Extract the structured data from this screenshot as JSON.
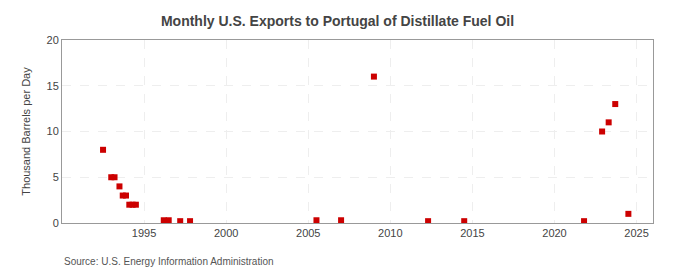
{
  "chart_data": {
    "type": "scatter",
    "title": "Monthly U.S. Exports to Portugal of Distillate Fuel Oil",
    "ylabel": "Thousand Barrels per Day",
    "annotations": [
      "Source: U.S. Energy Information Administration"
    ],
    "x": [
      1992.5,
      1993.0,
      1993.2,
      1993.5,
      1993.7,
      1993.9,
      1994.1,
      1994.3,
      1994.5,
      1996.2,
      1996.5,
      1997.2,
      1997.8,
      2005.5,
      2007.0,
      2009.0,
      2012.3,
      2014.5,
      2021.8,
      2022.9,
      2023.3,
      2023.7,
      2024.5
    ],
    "values": [
      8,
      5,
      5,
      4,
      3,
      3,
      2,
      2,
      2,
      0.3,
      0.3,
      0.2,
      0.2,
      0.3,
      0.3,
      16,
      0.2,
      0.2,
      0.2,
      10,
      11,
      13,
      1
    ],
    "color": "#cc0000",
    "marker": "square",
    "xlim": [
      1990,
      2026
    ],
    "xticks": [
      1995,
      2000,
      2005,
      2010,
      2015,
      2020,
      2025
    ],
    "ylim": [
      0,
      20
    ],
    "yticks": [
      0,
      5,
      10,
      15,
      20
    ],
    "grid": true
  }
}
